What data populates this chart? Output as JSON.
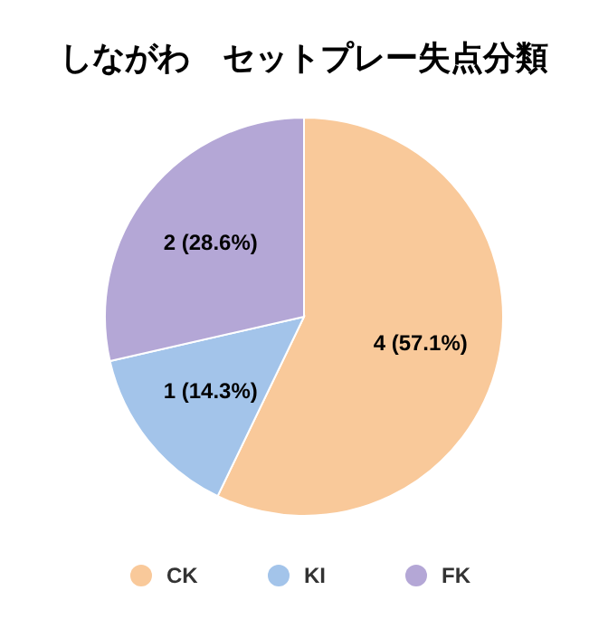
{
  "chart_data": {
    "type": "pie",
    "title": "しながわ　セットプレー失点分類",
    "categories": [
      "CK",
      "KI",
      "FK"
    ],
    "values": [
      4,
      1,
      2
    ],
    "colors": [
      "#f9c99a",
      "#a3c4ea",
      "#b4a7d6"
    ],
    "value_labels": [
      "4 (57.1%)",
      "1 (14.3%)",
      "2 (28.6%)"
    ],
    "legend": "bottom"
  }
}
